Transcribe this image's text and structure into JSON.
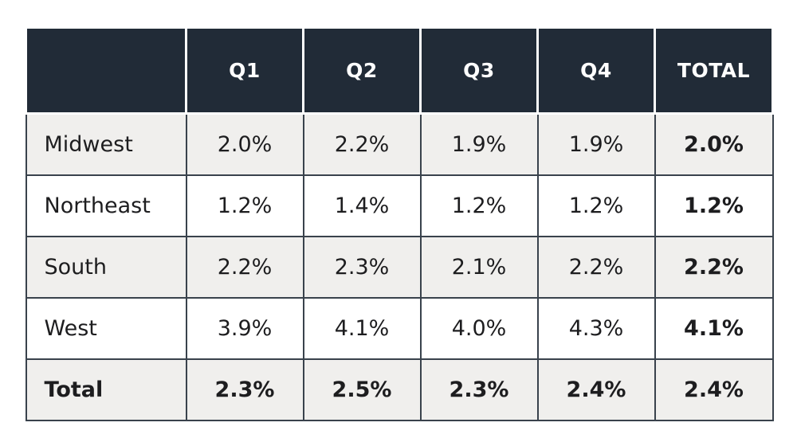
{
  "table": {
    "columns": [
      "",
      "Q1",
      "Q2",
      "Q3",
      "Q4",
      "TOTAL"
    ],
    "rows": [
      {
        "label": "Midwest",
        "values": [
          "2.0%",
          "2.2%",
          "1.9%",
          "1.9%"
        ],
        "total": "2.0%",
        "bold_row": false
      },
      {
        "label": "Northeast",
        "values": [
          "1.2%",
          "1.4%",
          "1.2%",
          "1.2%"
        ],
        "total": "1.2%",
        "bold_row": false
      },
      {
        "label": "South",
        "values": [
          "2.2%",
          "2.3%",
          "2.1%",
          "2.2%"
        ],
        "total": "2.2%",
        "bold_row": false
      },
      {
        "label": "West",
        "values": [
          "3.9%",
          "4.1%",
          "4.0%",
          "4.3%"
        ],
        "total": "4.1%",
        "bold_row": false
      },
      {
        "label": "Total",
        "values": [
          "2.3%",
          "2.5%",
          "2.3%",
          "2.4%"
        ],
        "total": "2.4%",
        "bold_row": true
      }
    ],
    "colors": {
      "header_bg": "#212b37",
      "header_text": "#ffffff",
      "row_alt_bg": "#f0efed",
      "row_bg": "#ffffff",
      "grid": "#39424c",
      "text": "#1d1d1f"
    }
  }
}
